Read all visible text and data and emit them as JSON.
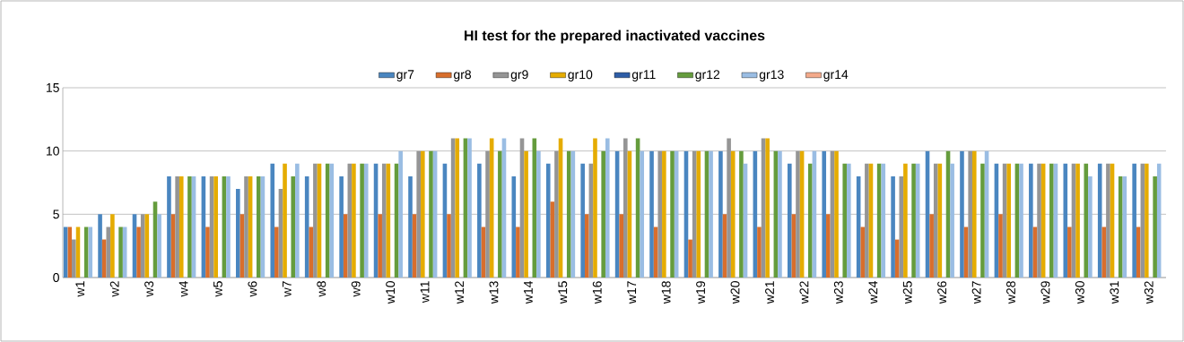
{
  "chart_data": {
    "type": "bar",
    "title": "HI test for the prepared inactivated vaccines",
    "categories": [
      "w1",
      "w2",
      "w3",
      "w4",
      "w5",
      "w6",
      "w7",
      "w8",
      "w9",
      "w10",
      "w11",
      "w12",
      "w13",
      "w14",
      "w15",
      "w16",
      "w17",
      "w18",
      "w19",
      "w20",
      "w21",
      "w22",
      "w23",
      "w24",
      "w25",
      "w26",
      "w27",
      "w28",
      "w29",
      "w30",
      "w31",
      "w32"
    ],
    "series": [
      {
        "name": "gr7",
        "color": "#4a86c0",
        "values": [
          4,
          5,
          5,
          8,
          8,
          7,
          9,
          8,
          8,
          9,
          8,
          9,
          9,
          8,
          9,
          9,
          10,
          10,
          10,
          10,
          10,
          9,
          10,
          8,
          8,
          10,
          10,
          9,
          9,
          9,
          9,
          9
        ]
      },
      {
        "name": "gr8",
        "color": "#d86e2c",
        "values": [
          4,
          3,
          4,
          5,
          4,
          5,
          4,
          4,
          5,
          5,
          5,
          5,
          4,
          4,
          6,
          5,
          5,
          4,
          3,
          5,
          4,
          5,
          5,
          4,
          3,
          5,
          4,
          5,
          4,
          4,
          4,
          4
        ]
      },
      {
        "name": "gr9",
        "color": "#959595",
        "values": [
          3,
          4,
          5,
          8,
          8,
          8,
          7,
          9,
          9,
          9,
          10,
          11,
          10,
          11,
          10,
          9,
          11,
          10,
          10,
          11,
          11,
          10,
          10,
          9,
          8,
          9,
          10,
          9,
          9,
          9,
          9,
          9
        ]
      },
      {
        "name": "gr10",
        "color": "#e5ac00",
        "values": [
          4,
          5,
          5,
          8,
          8,
          8,
          9,
          9,
          9,
          9,
          10,
          11,
          11,
          10,
          11,
          11,
          10,
          10,
          10,
          10,
          11,
          10,
          10,
          9,
          9,
          9,
          10,
          9,
          9,
          9,
          9,
          9
        ]
      },
      {
        "name": "gr11",
        "color": "#2e5da6",
        "values": [
          null,
          null,
          null,
          null,
          null,
          null,
          null,
          null,
          null,
          null,
          null,
          null,
          null,
          null,
          null,
          null,
          null,
          null,
          null,
          null,
          null,
          null,
          null,
          null,
          null,
          null,
          null,
          null,
          null,
          null,
          null,
          null
        ]
      },
      {
        "name": "gr12",
        "color": "#659c3d",
        "values": [
          4,
          4,
          6,
          8,
          8,
          8,
          8,
          9,
          9,
          9,
          10,
          11,
          10,
          11,
          10,
          10,
          11,
          10,
          10,
          10,
          10,
          9,
          9,
          9,
          9,
          10,
          9,
          9,
          9,
          9,
          8,
          8
        ]
      },
      {
        "name": "gr13",
        "color": "#9abde3",
        "values": [
          4,
          4,
          5,
          8,
          8,
          8,
          9,
          9,
          9,
          10,
          10,
          11,
          11,
          10,
          10,
          11,
          10,
          10,
          10,
          9,
          10,
          10,
          9,
          9,
          9,
          9,
          10,
          9,
          9,
          8,
          8,
          9
        ]
      },
      {
        "name": "gr14",
        "color": "#f3a98a",
        "values": [
          null,
          null,
          null,
          null,
          null,
          null,
          null,
          null,
          null,
          null,
          null,
          null,
          null,
          null,
          null,
          null,
          null,
          null,
          null,
          null,
          null,
          null,
          null,
          null,
          null,
          null,
          null,
          null,
          null,
          null,
          null,
          null
        ]
      }
    ],
    "ylim": [
      0,
      15
    ],
    "yticks": [
      0,
      5,
      10,
      15
    ],
    "grid": "y",
    "legend": "top"
  }
}
